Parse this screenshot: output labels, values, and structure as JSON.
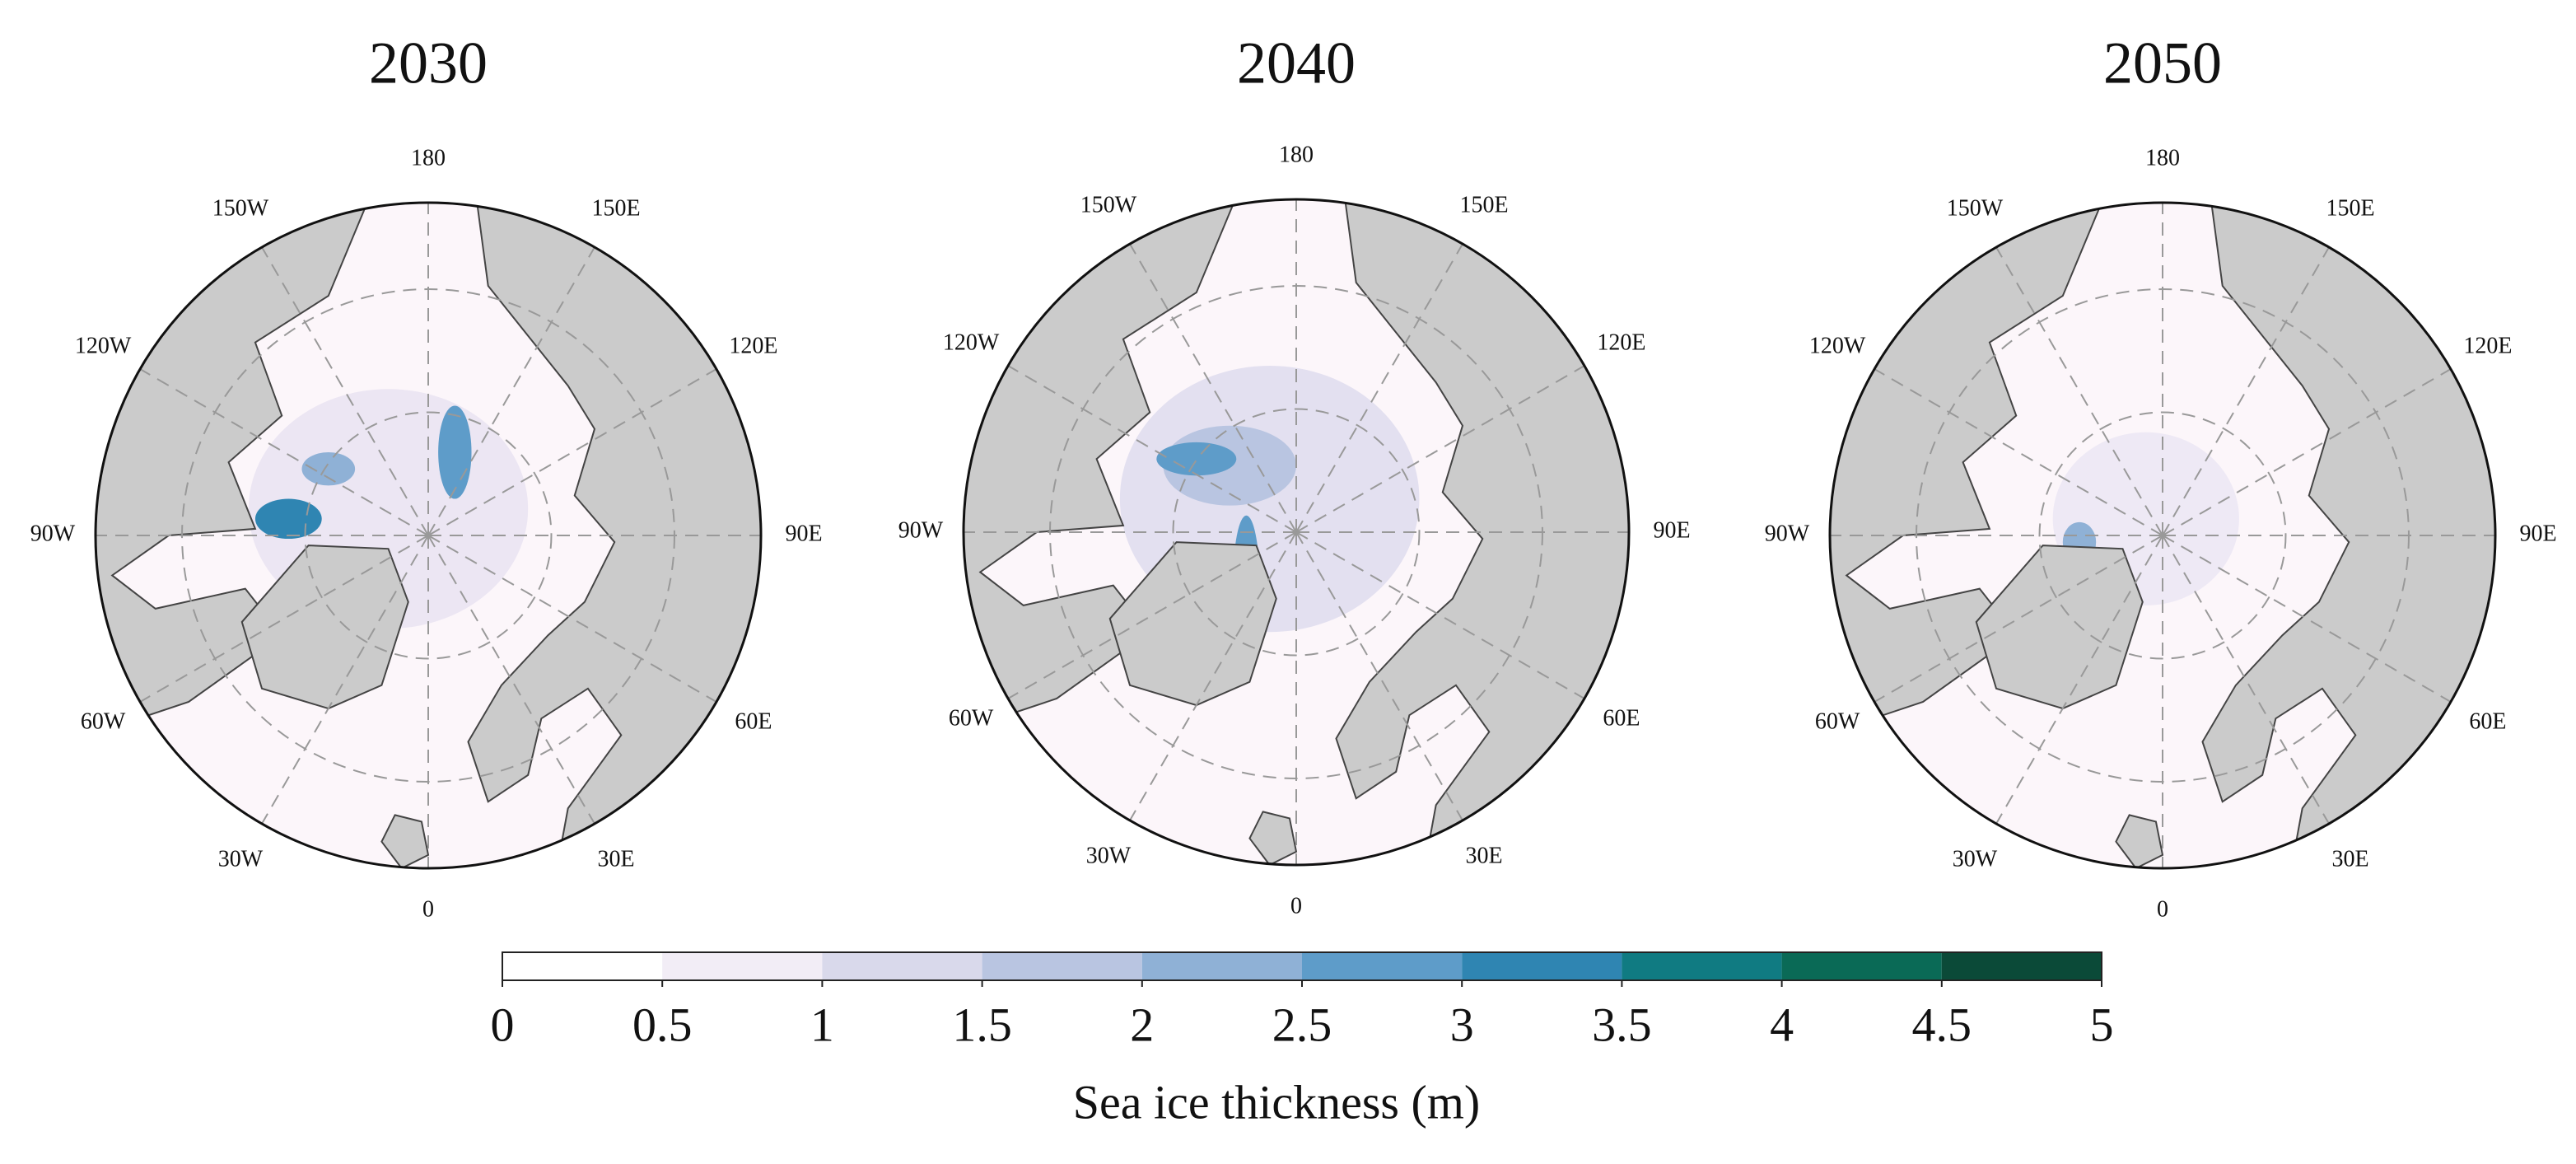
{
  "panels": [
    {
      "title": "2030"
    },
    {
      "title": "2040"
    },
    {
      "title": "2050"
    }
  ],
  "longitude_labels": [
    "180",
    "150E",
    "120E",
    "90E",
    "60E",
    "30E",
    "0",
    "30W",
    "60W",
    "90W",
    "120W",
    "150W"
  ],
  "colorbar": {
    "ticks": [
      0,
      0.5,
      1,
      1.5,
      2,
      2.5,
      3,
      3.5,
      4,
      4.5,
      5
    ],
    "colors": [
      "#ffffff",
      "#f2edf6",
      "#d9d9eb",
      "#b9c5e1",
      "#8fb1d6",
      "#5e9cc9",
      "#2f85b2",
      "#107b82",
      "#0a6a56",
      "#0b4a38"
    ],
    "label": "Sea ice thickness (m)"
  }
}
